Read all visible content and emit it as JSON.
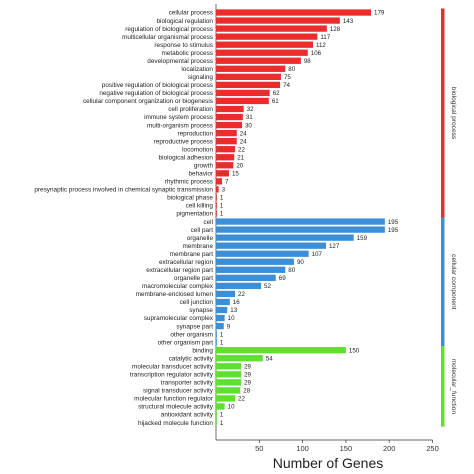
{
  "chart_data": {
    "type": "bar",
    "orientation": "horizontal",
    "xlabel": "Number of Genes",
    "xlim": [
      0,
      250
    ],
    "xticks": [
      50,
      100,
      150,
      200,
      250
    ],
    "grid": false,
    "series": [
      {
        "name": "biological process",
        "color": "#ee2b2b",
        "categories": [
          "cellular process",
          "biological regulation",
          "regulation of biological process",
          "multicellular organismal process",
          "response to stimulus",
          "metabolic process",
          "developmental process",
          "localization",
          "signaling",
          "positive regulation of biological process",
          "negative regulation of biological process",
          "cellular component organization or biogenesis",
          "cell proliferation",
          "immune system process",
          "multi-organism process",
          "reproduction",
          "reproductive process",
          "locomotion",
          "biological adhesion",
          "growth",
          "behavior",
          "rhythmic process",
          "presynaptic process involved in chemical synaptic transmission",
          "biological phase",
          "cell killing",
          "pigmentation"
        ],
        "values": [
          179,
          143,
          128,
          117,
          112,
          106,
          98,
          80,
          75,
          74,
          62,
          61,
          32,
          31,
          30,
          24,
          24,
          22,
          21,
          20,
          15,
          7,
          3,
          1,
          1,
          1
        ]
      },
      {
        "name": "cellular component",
        "color": "#3b8fd8",
        "categories": [
          "cell",
          "cell part",
          "organelle",
          "membrane",
          "membrane part",
          "extracellular region",
          "extracellular region part",
          "organelle part",
          "macromolecular complex",
          "membrane-enclosed lumen",
          "cell junction",
          "synapse",
          "supramolecular complex",
          "synapse part",
          "other organism",
          "other organism part"
        ],
        "values": [
          195,
          195,
          159,
          127,
          107,
          90,
          80,
          69,
          52,
          22,
          16,
          13,
          10,
          9,
          1,
          1
        ]
      },
      {
        "name": "molecular_function",
        "color": "#5ee02c",
        "categories": [
          "binding",
          "catalytic activity",
          "molecular transducer activity",
          "transcription regulator activity",
          "transporter activity",
          "signal transducer activity",
          "molecular function regulator",
          "structural molecule activity",
          "antioxidant activity",
          "hijacked molecule function"
        ],
        "values": [
          150,
          54,
          29,
          29,
          29,
          28,
          22,
          10,
          1,
          1
        ]
      }
    ]
  }
}
